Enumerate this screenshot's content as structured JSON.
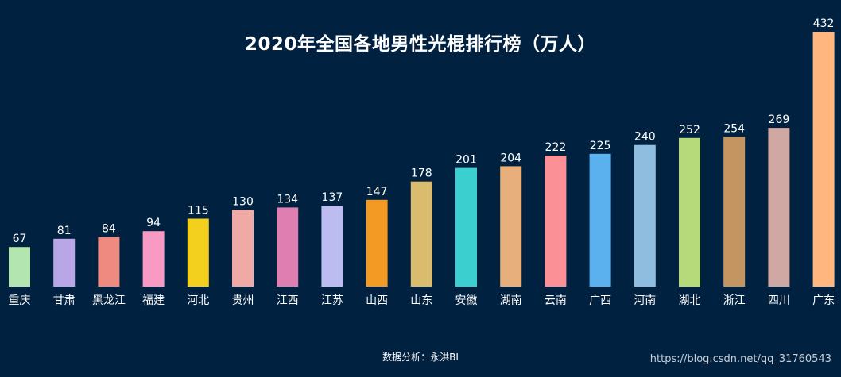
{
  "chart_data": {
    "type": "bar",
    "title": "2020年全国各地男性光棍排行榜（万人）",
    "categories": [
      "重庆",
      "甘肃",
      "黑龙江",
      "福建",
      "河北",
      "贵州",
      "江西",
      "江苏",
      "山西",
      "山东",
      "安徽",
      "湖南",
      "云南",
      "广西",
      "河南",
      "湖北",
      "浙江",
      "四川",
      "广东"
    ],
    "values": [
      67,
      81,
      84,
      94,
      115,
      130,
      134,
      137,
      147,
      178,
      201,
      204,
      222,
      225,
      240,
      252,
      254,
      269,
      432
    ],
    "colors": [
      "#b3e5b0",
      "#b9a6e6",
      "#ee8a7f",
      "#f99ac4",
      "#f3cf1e",
      "#efaaa5",
      "#df7eb1",
      "#bcbcf1",
      "#f39a24",
      "#d9bc6e",
      "#3ccfcf",
      "#e7af7c",
      "#fb9196",
      "#5ab1ee",
      "#8ebde0",
      "#b6d97a",
      "#c49560",
      "#cfa7a3",
      "#ffb67f"
    ],
    "xlabel": "",
    "ylabel": "",
    "ylim": [
      0,
      432
    ],
    "grid": false,
    "legend": "none"
  },
  "footer": {
    "source": "数据分析：永洪BI",
    "watermark": "https://blog.csdn.net/qq_31760543"
  }
}
